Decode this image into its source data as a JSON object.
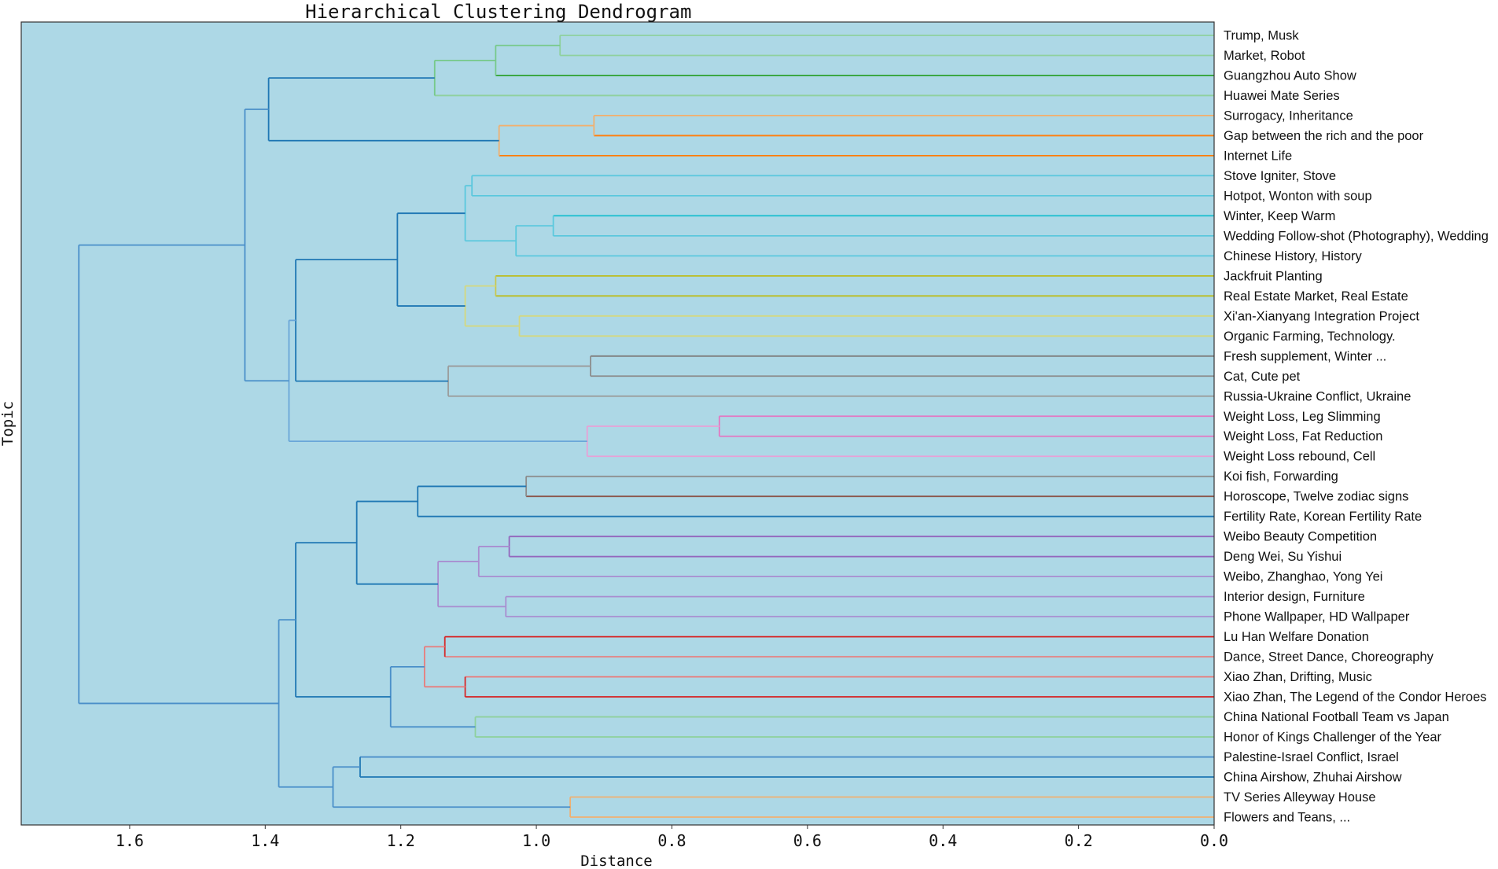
{
  "chart_data": {
    "type": "dendrogram",
    "title": "Hierarchical Clustering Dendrogram",
    "xlabel": "Distance",
    "ylabel": "Topic",
    "xlim": [
      1.76,
      0.0
    ],
    "xticks": [
      1.6,
      1.4,
      1.2,
      1.0,
      0.8,
      0.6,
      0.4,
      0.2,
      0.0
    ],
    "xtick_labels": [
      "1.6",
      "1.4",
      "1.2",
      "1.0",
      "0.8",
      "0.6",
      "0.4",
      "0.2",
      "0.0"
    ],
    "background_color": "#add8e6",
    "leaves": [
      "Trump, Musk",
      "Market, Robot",
      "Guangzhou Auto Show",
      "Huawei Mate Series",
      "Surrogacy, Inheritance",
      "Gap between the rich and the poor",
      "Internet Life",
      "Stove Igniter, Stove",
      "Hotpot, Wonton with soup",
      "Winter, Keep Warm",
      "Wedding Follow-shot (Photography), Wedding",
      "Chinese History, History",
      "Jackfruit Planting",
      "Real Estate Market, Real Estate",
      "Xi'an-Xianyang Integration Project",
      "Organic Farming, Technology.",
      "Fresh supplement, Winter ...",
      "Cat, Cute pet",
      "Russia-Ukraine Conflict, Ukraine",
      "Weight Loss, Leg Slimming",
      "Weight Loss, Fat Reduction",
      "Weight Loss rebound, Cell",
      "Koi fish, Forwarding",
      "Horoscope, Twelve zodiac signs",
      "Fertility Rate, Korean Fertility Rate",
      "Weibo Beauty Competition",
      "Deng Wei, Su Yishui",
      "Weibo, Zhanghao, Yong Yei",
      "Interior design, Furniture",
      "Phone Wallpaper, HD Wallpaper",
      "Lu Han Welfare Donation",
      "Dance, Street Dance, Choreography",
      "Xiao Zhan, Drifting, Music",
      "Xiao Zhan, The Legend of the Condor Heroes",
      "China National Football Team vs Japan",
      "Honor of Kings Challenger of the Year",
      "Palestine-Israel Conflict, Israel",
      "China Airshow, Zhuhai Airshow",
      "TV Series Alleyway House",
      "Flowers and Teans, ..."
    ],
    "merges": [
      {
        "id": "n0",
        "height": 0.965,
        "left": "L0",
        "right": "L1",
        "color": "#8fd19e",
        "right_color": "#8fd19e"
      },
      {
        "id": "n1",
        "height": 1.06,
        "left": "n0",
        "right": "L2",
        "color": "#77c98a",
        "right_color": "#2ca02c"
      },
      {
        "id": "n2",
        "height": 1.15,
        "left": "n1",
        "right": "L3",
        "color": "#77c98a",
        "right_color": "#8fd19e"
      },
      {
        "id": "n3",
        "height": 0.915,
        "left": "L4",
        "right": "L5",
        "color": "#f0b070",
        "right_color": "#ff7f0e"
      },
      {
        "id": "n4",
        "height": 1.055,
        "left": "n3",
        "right": "L6",
        "color": "#f0b070",
        "right_color": "#ff7f0e"
      },
      {
        "id": "n5",
        "height": 1.395,
        "left": "n2",
        "right": "n4",
        "color": "#1f77b4"
      },
      {
        "id": "n6",
        "height": 1.095,
        "left": "L7",
        "right": "L8",
        "color": "#5bc8dd"
      },
      {
        "id": "n7",
        "height": 0.975,
        "left": "L9",
        "right": "L10",
        "color": "#5bc8dd",
        "left_color": "#17becf"
      },
      {
        "id": "n8",
        "height": 1.03,
        "left": "n7",
        "right": "L11",
        "color": "#5bc8dd"
      },
      {
        "id": "n9",
        "height": 1.105,
        "left": "n6",
        "right": "n8",
        "color": "#5bc8dd"
      },
      {
        "id": "n10",
        "height": 1.06,
        "left": "L12",
        "right": "L13",
        "color": "#c8c850",
        "left_color": "#bcbd22",
        "right_color": "#bcbd22"
      },
      {
        "id": "n11",
        "height": 1.025,
        "left": "L14",
        "right": "L15",
        "color": "#d4d880"
      },
      {
        "id": "n12",
        "height": 1.105,
        "left": "n10",
        "right": "n11",
        "color": "#d4d880"
      },
      {
        "id": "n13",
        "height": 1.205,
        "left": "n9",
        "right": "n12",
        "color": "#1f77b4"
      },
      {
        "id": "n14",
        "height": 0.92,
        "left": "L16",
        "right": "L17",
        "color": "#8c8c8c",
        "left_color": "#7f7f7f"
      },
      {
        "id": "n15",
        "height": 1.13,
        "left": "n14",
        "right": "L18",
        "color": "#9a9a9a"
      },
      {
        "id": "n16",
        "height": 1.355,
        "left": "n13",
        "right": "n15",
        "color": "#1f77b4"
      },
      {
        "id": "n17",
        "height": 0.73,
        "left": "L19",
        "right": "L20",
        "color": "#e377c2"
      },
      {
        "id": "n18",
        "height": 0.925,
        "left": "n17",
        "right": "L21",
        "color": "#e8a0d6"
      },
      {
        "id": "n19",
        "height": 1.365,
        "left": "n16",
        "right": "n18",
        "color": "#6aa6d8"
      },
      {
        "id": "n20",
        "height": 1.43,
        "left": "n5",
        "right": "n19",
        "color": "#4a8fc9"
      },
      {
        "id": "n21",
        "height": 1.015,
        "left": "L22",
        "right": "L23",
        "color": "#8c8c8c",
        "right_color": "#8c564b"
      },
      {
        "id": "n22",
        "height": 1.175,
        "left": "n21",
        "right": "L24",
        "color": "#1f77b4"
      },
      {
        "id": "n23",
        "height": 1.04,
        "left": "L25",
        "right": "L26",
        "color": "#9467bd"
      },
      {
        "id": "n24",
        "height": 1.085,
        "left": "n23",
        "right": "L27",
        "color": "#a98ed0"
      },
      {
        "id": "n25",
        "height": 1.045,
        "left": "L28",
        "right": "L29",
        "color": "#a98ed0"
      },
      {
        "id": "n26",
        "height": 1.145,
        "left": "n24",
        "right": "n25",
        "color": "#a98ed0"
      },
      {
        "id": "n27",
        "height": 1.265,
        "left": "n22",
        "right": "n26",
        "color": "#1f77b4"
      },
      {
        "id": "n28",
        "height": 1.135,
        "left": "L30",
        "right": "L31",
        "color": "#d62728",
        "right_color": "#e87d7d"
      },
      {
        "id": "n29",
        "height": 1.105,
        "left": "L32",
        "right": "L33",
        "color": "#d62728",
        "left_color": "#e87d7d"
      },
      {
        "id": "n30",
        "height": 1.165,
        "left": "n28",
        "right": "n29",
        "color": "#e87d7d"
      },
      {
        "id": "n31",
        "height": 1.09,
        "left": "L34",
        "right": "L35",
        "color": "#8fd19e"
      },
      {
        "id": "n32",
        "height": 1.215,
        "left": "n30",
        "right": "n31",
        "color": "#4a8fc9"
      },
      {
        "id": "n33",
        "height": 1.355,
        "left": "n27",
        "right": "n32",
        "color": "#1f77b4"
      },
      {
        "id": "n34",
        "height": 1.26,
        "left": "L36",
        "right": "L37",
        "color": "#1f77b4",
        "left_color": "#4a8fc9"
      },
      {
        "id": "n35",
        "height": 0.95,
        "left": "L38",
        "right": "L39",
        "color": "#f0b070"
      },
      {
        "id": "n36",
        "height": 1.3,
        "left": "n34",
        "right": "n35",
        "color": "#4a8fc9"
      },
      {
        "id": "n37",
        "height": 1.38,
        "left": "n33",
        "right": "n36",
        "color": "#4a8fc9"
      },
      {
        "id": "n38",
        "height": 1.675,
        "left": "n20",
        "right": "n37",
        "color": "#4a8fc9"
      }
    ]
  }
}
